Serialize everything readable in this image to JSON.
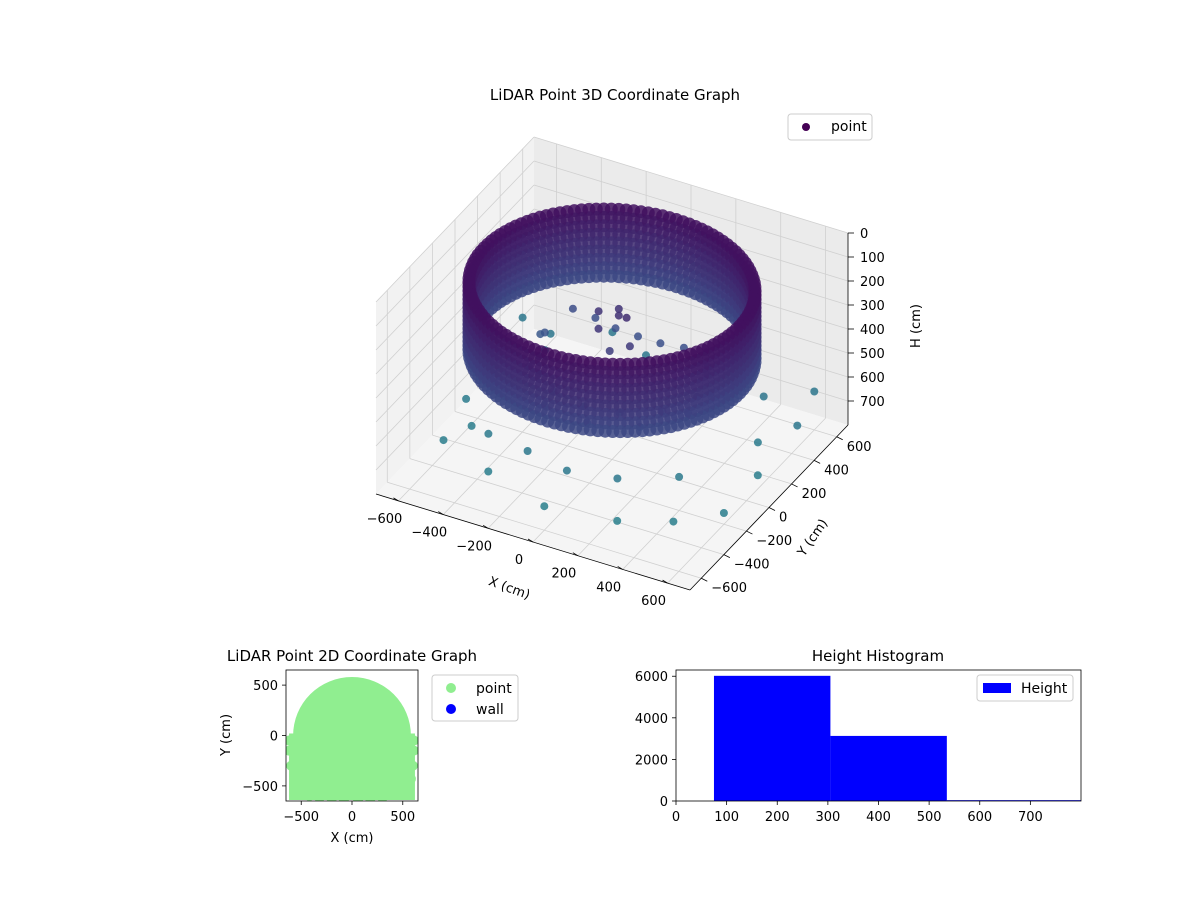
{
  "chart_data": [
    {
      "type": "scatter",
      "title": "LiDAR Point 3D Coordinate Graph",
      "xlabel": "X (cm)",
      "ylabel": "Y (cm)",
      "zlabel": "H (cm)",
      "xlim": [
        -700,
        700
      ],
      "ylim": [
        -700,
        700
      ],
      "zlim": [
        0,
        800
      ],
      "z_inverted": true,
      "x_ticks": [
        "−600",
        "−400",
        "−200",
        "0",
        "200",
        "400",
        "600"
      ],
      "x_tick_values": [
        -600,
        -400,
        -200,
        0,
        200,
        400,
        600
      ],
      "y_ticks": [
        "−600",
        "−400",
        "−200",
        "0",
        "200",
        "400",
        "600"
      ],
      "y_tick_values": [
        -600,
        -400,
        -200,
        0,
        200,
        400,
        600
      ],
      "z_ticks": [
        "0",
        "100",
        "200",
        "300",
        "400",
        "500",
        "600",
        "700"
      ],
      "z_tick_values": [
        0,
        100,
        200,
        300,
        400,
        500,
        600,
        700
      ],
      "legend": [
        "point"
      ],
      "legend_position": "top-right",
      "colormap": "viridis",
      "grid": true,
      "series": [
        {
          "name": "point",
          "wall_ring": {
            "radius": 570,
            "h_top": 80,
            "h_bottom": 360
          },
          "points": [
            [
              -300,
              250,
              380
            ],
            [
              -200,
              250,
              390
            ],
            [
              -100,
              230,
              395
            ],
            [
              0,
              230,
              400
            ],
            [
              100,
              230,
              400
            ],
            [
              200,
              240,
              395
            ],
            [
              300,
              240,
              385
            ],
            [
              -350,
              100,
              420
            ],
            [
              -300,
              -50,
              430
            ],
            [
              -250,
              -150,
              440
            ],
            [
              -150,
              -220,
              450
            ],
            [
              0,
              -250,
              455
            ],
            [
              150,
              -230,
              450
            ],
            [
              300,
              -150,
              440
            ],
            [
              380,
              0,
              430
            ],
            [
              350,
              150,
              420
            ],
            [
              -380,
              120,
              445
            ],
            [
              -320,
              -100,
              455
            ],
            [
              -150,
              -300,
              470
            ],
            [
              50,
              -320,
              475
            ],
            [
              250,
              -250,
              470
            ],
            [
              380,
              -80,
              460
            ],
            [
              400,
              80,
              450
            ],
            [
              -100,
              80,
              250
            ],
            [
              0,
              60,
              230
            ],
            [
              50,
              30,
              210
            ],
            [
              -50,
              -20,
              260
            ],
            [
              100,
              -40,
              280
            ],
            [
              30,
              -80,
              300
            ],
            [
              -30,
              120,
              240
            ],
            [
              -650,
              500,
              640
            ],
            [
              -500,
              450,
              640
            ],
            [
              -300,
              600,
              650
            ],
            [
              600,
              600,
              640
            ],
            [
              650,
              350,
              645
            ],
            [
              -650,
              150,
              660
            ],
            [
              -600,
              -100,
              670
            ],
            [
              -550,
              -400,
              680
            ],
            [
              -300,
              -500,
              690
            ],
            [
              0,
              -600,
              700
            ],
            [
              300,
              -550,
              700
            ],
            [
              500,
              -450,
              695
            ],
            [
              650,
              -300,
              690
            ],
            [
              650,
              0,
              680
            ],
            [
              550,
              200,
              670
            ],
            [
              -450,
              300,
              620
            ],
            [
              450,
              450,
              630
            ],
            [
              -100,
              500,
              640
            ],
            [
              150,
              550,
              640
            ],
            [
              -400,
              -300,
              660
            ],
            [
              200,
              -350,
              650
            ],
            [
              400,
              -200,
              660
            ],
            [
              -200,
              -350,
              650
            ],
            [
              0,
              -400,
              650
            ],
            [
              -500,
              -250,
              680
            ],
            [
              300,
              400,
              640
            ]
          ]
        }
      ]
    },
    {
      "type": "scatter",
      "title": "LiDAR Point 2D Coordinate Graph",
      "xlabel": "X (cm)",
      "ylabel": "Y (cm)",
      "xlim": [
        -650,
        650
      ],
      "ylim": [
        -650,
        650
      ],
      "x_ticks": [
        "−500",
        "0",
        "500"
      ],
      "x_tick_values": [
        -500,
        0,
        500
      ],
      "y_ticks": [
        "−500",
        "0",
        "500"
      ],
      "y_tick_values": [
        -500,
        0,
        500
      ],
      "legend": [
        "point",
        "wall"
      ],
      "legend_position": "outside-right",
      "grid": false,
      "series": [
        {
          "name": "point",
          "color": "#90ee90",
          "fill_region": {
            "radius": 580
          },
          "points": [
            [
              -620,
              -150
            ],
            [
              -600,
              -300
            ],
            [
              -560,
              -450
            ],
            [
              -500,
              -560
            ],
            [
              -420,
              -600
            ],
            [
              -320,
              -620
            ],
            [
              -200,
              -630
            ],
            [
              -80,
              -640
            ],
            [
              60,
              -640
            ],
            [
              180,
              -630
            ],
            [
              300,
              -620
            ],
            [
              420,
              -590
            ],
            [
              520,
              -540
            ],
            [
              580,
              -430
            ],
            [
              600,
              -300
            ],
            [
              610,
              -150
            ],
            [
              -620,
              -50
            ],
            [
              610,
              -50
            ],
            [
              -350,
              -550
            ],
            [
              350,
              -560
            ]
          ]
        },
        {
          "name": "wall",
          "color": "#0000ff",
          "points": []
        }
      ]
    },
    {
      "type": "bar",
      "title": "Height Histogram",
      "xlabel": "",
      "ylabel": "",
      "xlim": [
        0,
        800
      ],
      "ylim": [
        0,
        6300
      ],
      "x_ticks": [
        "0",
        "100",
        "200",
        "300",
        "400",
        "500",
        "600",
        "700"
      ],
      "x_tick_values": [
        0,
        100,
        200,
        300,
        400,
        500,
        600,
        700
      ],
      "y_ticks": [
        "0",
        "2000",
        "4000",
        "6000"
      ],
      "y_tick_values": [
        0,
        2000,
        4000,
        6000
      ],
      "legend": [
        "Height"
      ],
      "legend_position": "top-right",
      "grid": false,
      "series": [
        {
          "name": "Height",
          "color": "#0000ff",
          "bins": [
            [
              75,
              305,
              6020
            ],
            [
              305,
              535,
              3130
            ],
            [
              535,
              800,
              40
            ]
          ]
        }
      ]
    }
  ]
}
